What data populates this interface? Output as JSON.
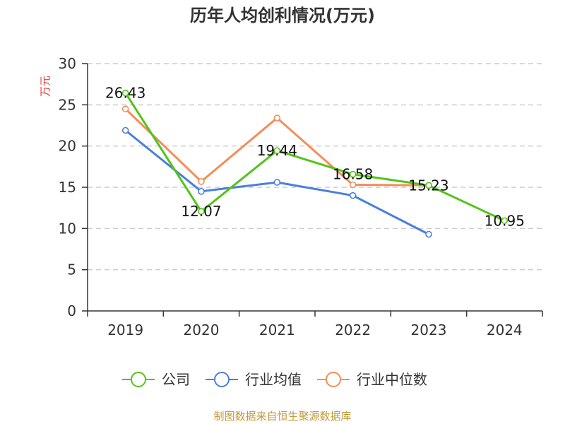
{
  "chart_data": {
    "type": "line",
    "title": "历年人均创利情况(万元)",
    "ylabel": "万元",
    "xlabel": "",
    "categories": [
      "2019",
      "2020",
      "2021",
      "2022",
      "2023",
      "2024"
    ],
    "ylim": [
      0,
      30
    ],
    "yticks": [
      0,
      5,
      10,
      15,
      20,
      25,
      30
    ],
    "grid": true,
    "legend_position": "bottom",
    "series": [
      {
        "name": "公司",
        "color": "#52c41a",
        "values": [
          26.43,
          12.07,
          19.44,
          16.58,
          15.23,
          10.95
        ],
        "labels": [
          "26.43",
          "12.07",
          "19.44",
          "16.58",
          "15.23",
          "10.95"
        ]
      },
      {
        "name": "行业均值",
        "color": "#4a7fdc",
        "values": [
          21.9,
          14.5,
          15.6,
          14.0,
          9.3,
          null
        ]
      },
      {
        "name": "行业中位数",
        "color": "#f28e5a",
        "values": [
          24.5,
          15.7,
          23.4,
          15.3,
          15.23,
          null
        ]
      }
    ]
  },
  "source_text": "制图数据来自恒生聚源数据库",
  "colors": {
    "axis": "#333333",
    "grid": "#cccccc",
    "ylabel": "#e53935",
    "source": "#c09a3a"
  }
}
